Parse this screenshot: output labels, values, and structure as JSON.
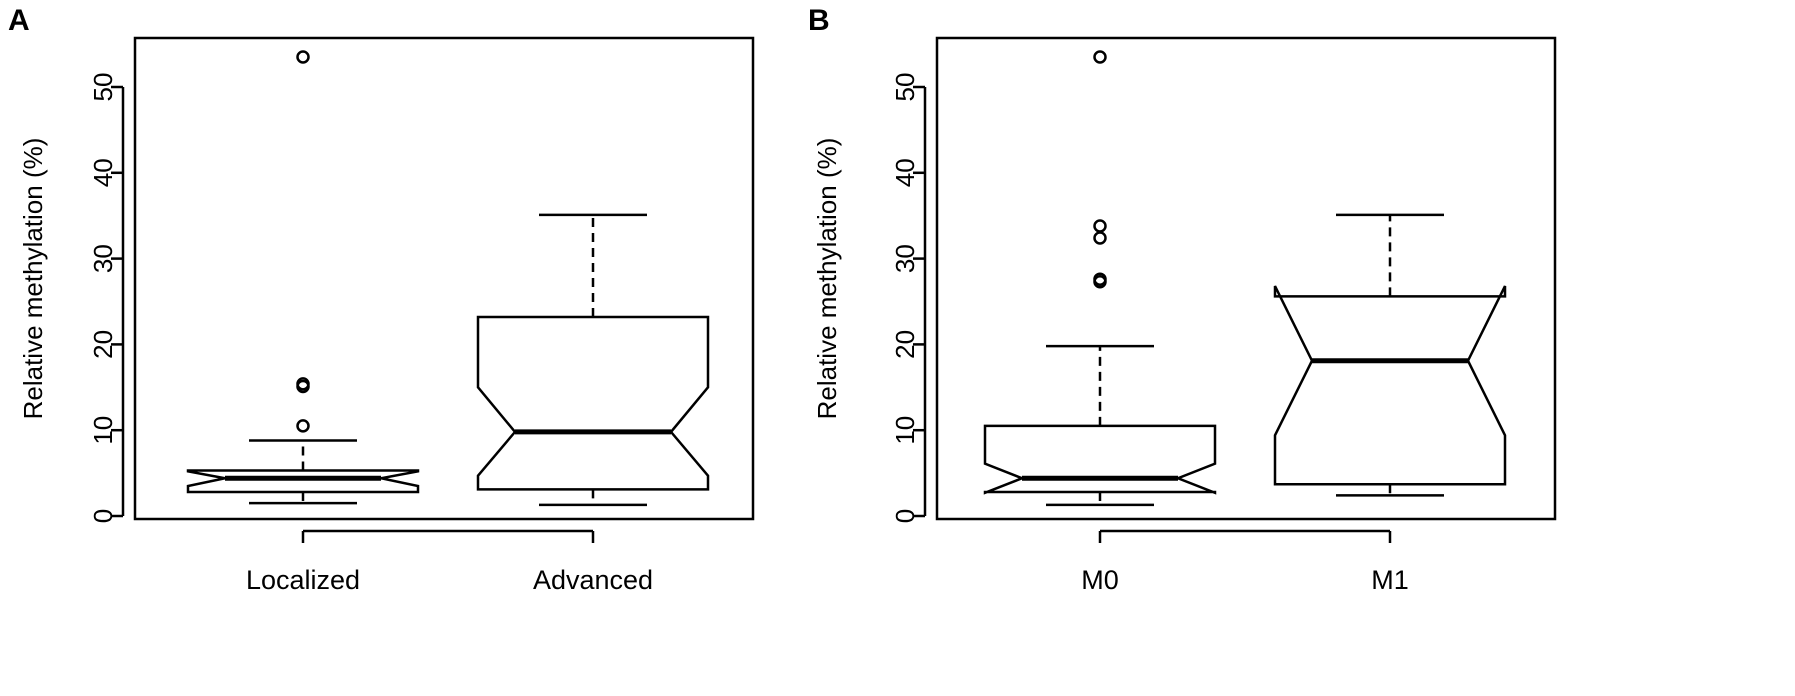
{
  "chart_data": [
    {
      "type": "boxplot",
      "panel_label": "A",
      "ylabel": "Relative methylation (%)",
      "ylim": [
        0,
        55
      ],
      "yticks": [
        0,
        10,
        20,
        30,
        40,
        50
      ],
      "notched": true,
      "categories": [
        "Localized",
        "Advanced"
      ],
      "boxes": [
        {
          "category": "Localized",
          "whisker_low": 1.5,
          "q1": 2.8,
          "notch_low": 3.5,
          "median": 4.4,
          "notch_high": 5.2,
          "q3": 5.3,
          "whisker_high": 8.8,
          "outliers": [
            10.5,
            15.1,
            15.4,
            53.5
          ]
        },
        {
          "category": "Advanced",
          "whisker_low": 1.3,
          "q1": 3.1,
          "notch_low": 4.7,
          "median": 9.8,
          "notch_high": 15.0,
          "q3": 23.2,
          "whisker_high": 35.1,
          "outliers": []
        }
      ]
    },
    {
      "type": "boxplot",
      "panel_label": "B",
      "ylabel": "Relative methylation (%)",
      "ylim": [
        0,
        55
      ],
      "yticks": [
        0,
        10,
        20,
        30,
        40,
        50
      ],
      "notched": true,
      "categories": [
        "M0",
        "M1"
      ],
      "boxes": [
        {
          "category": "M0",
          "whisker_low": 1.3,
          "q1": 2.8,
          "notch_low": 2.7,
          "median": 4.4,
          "notch_high": 6.1,
          "q3": 10.5,
          "whisker_high": 19.8,
          "outliers": [
            27.3,
            27.6,
            32.4,
            33.8,
            53.5
          ]
        },
        {
          "category": "M1",
          "whisker_low": 2.4,
          "q1": 3.7,
          "notch_low": 9.4,
          "median": 18.1,
          "notch_high": 26.8,
          "q3": 25.6,
          "whisker_high": 35.1,
          "outliers": []
        }
      ]
    }
  ]
}
